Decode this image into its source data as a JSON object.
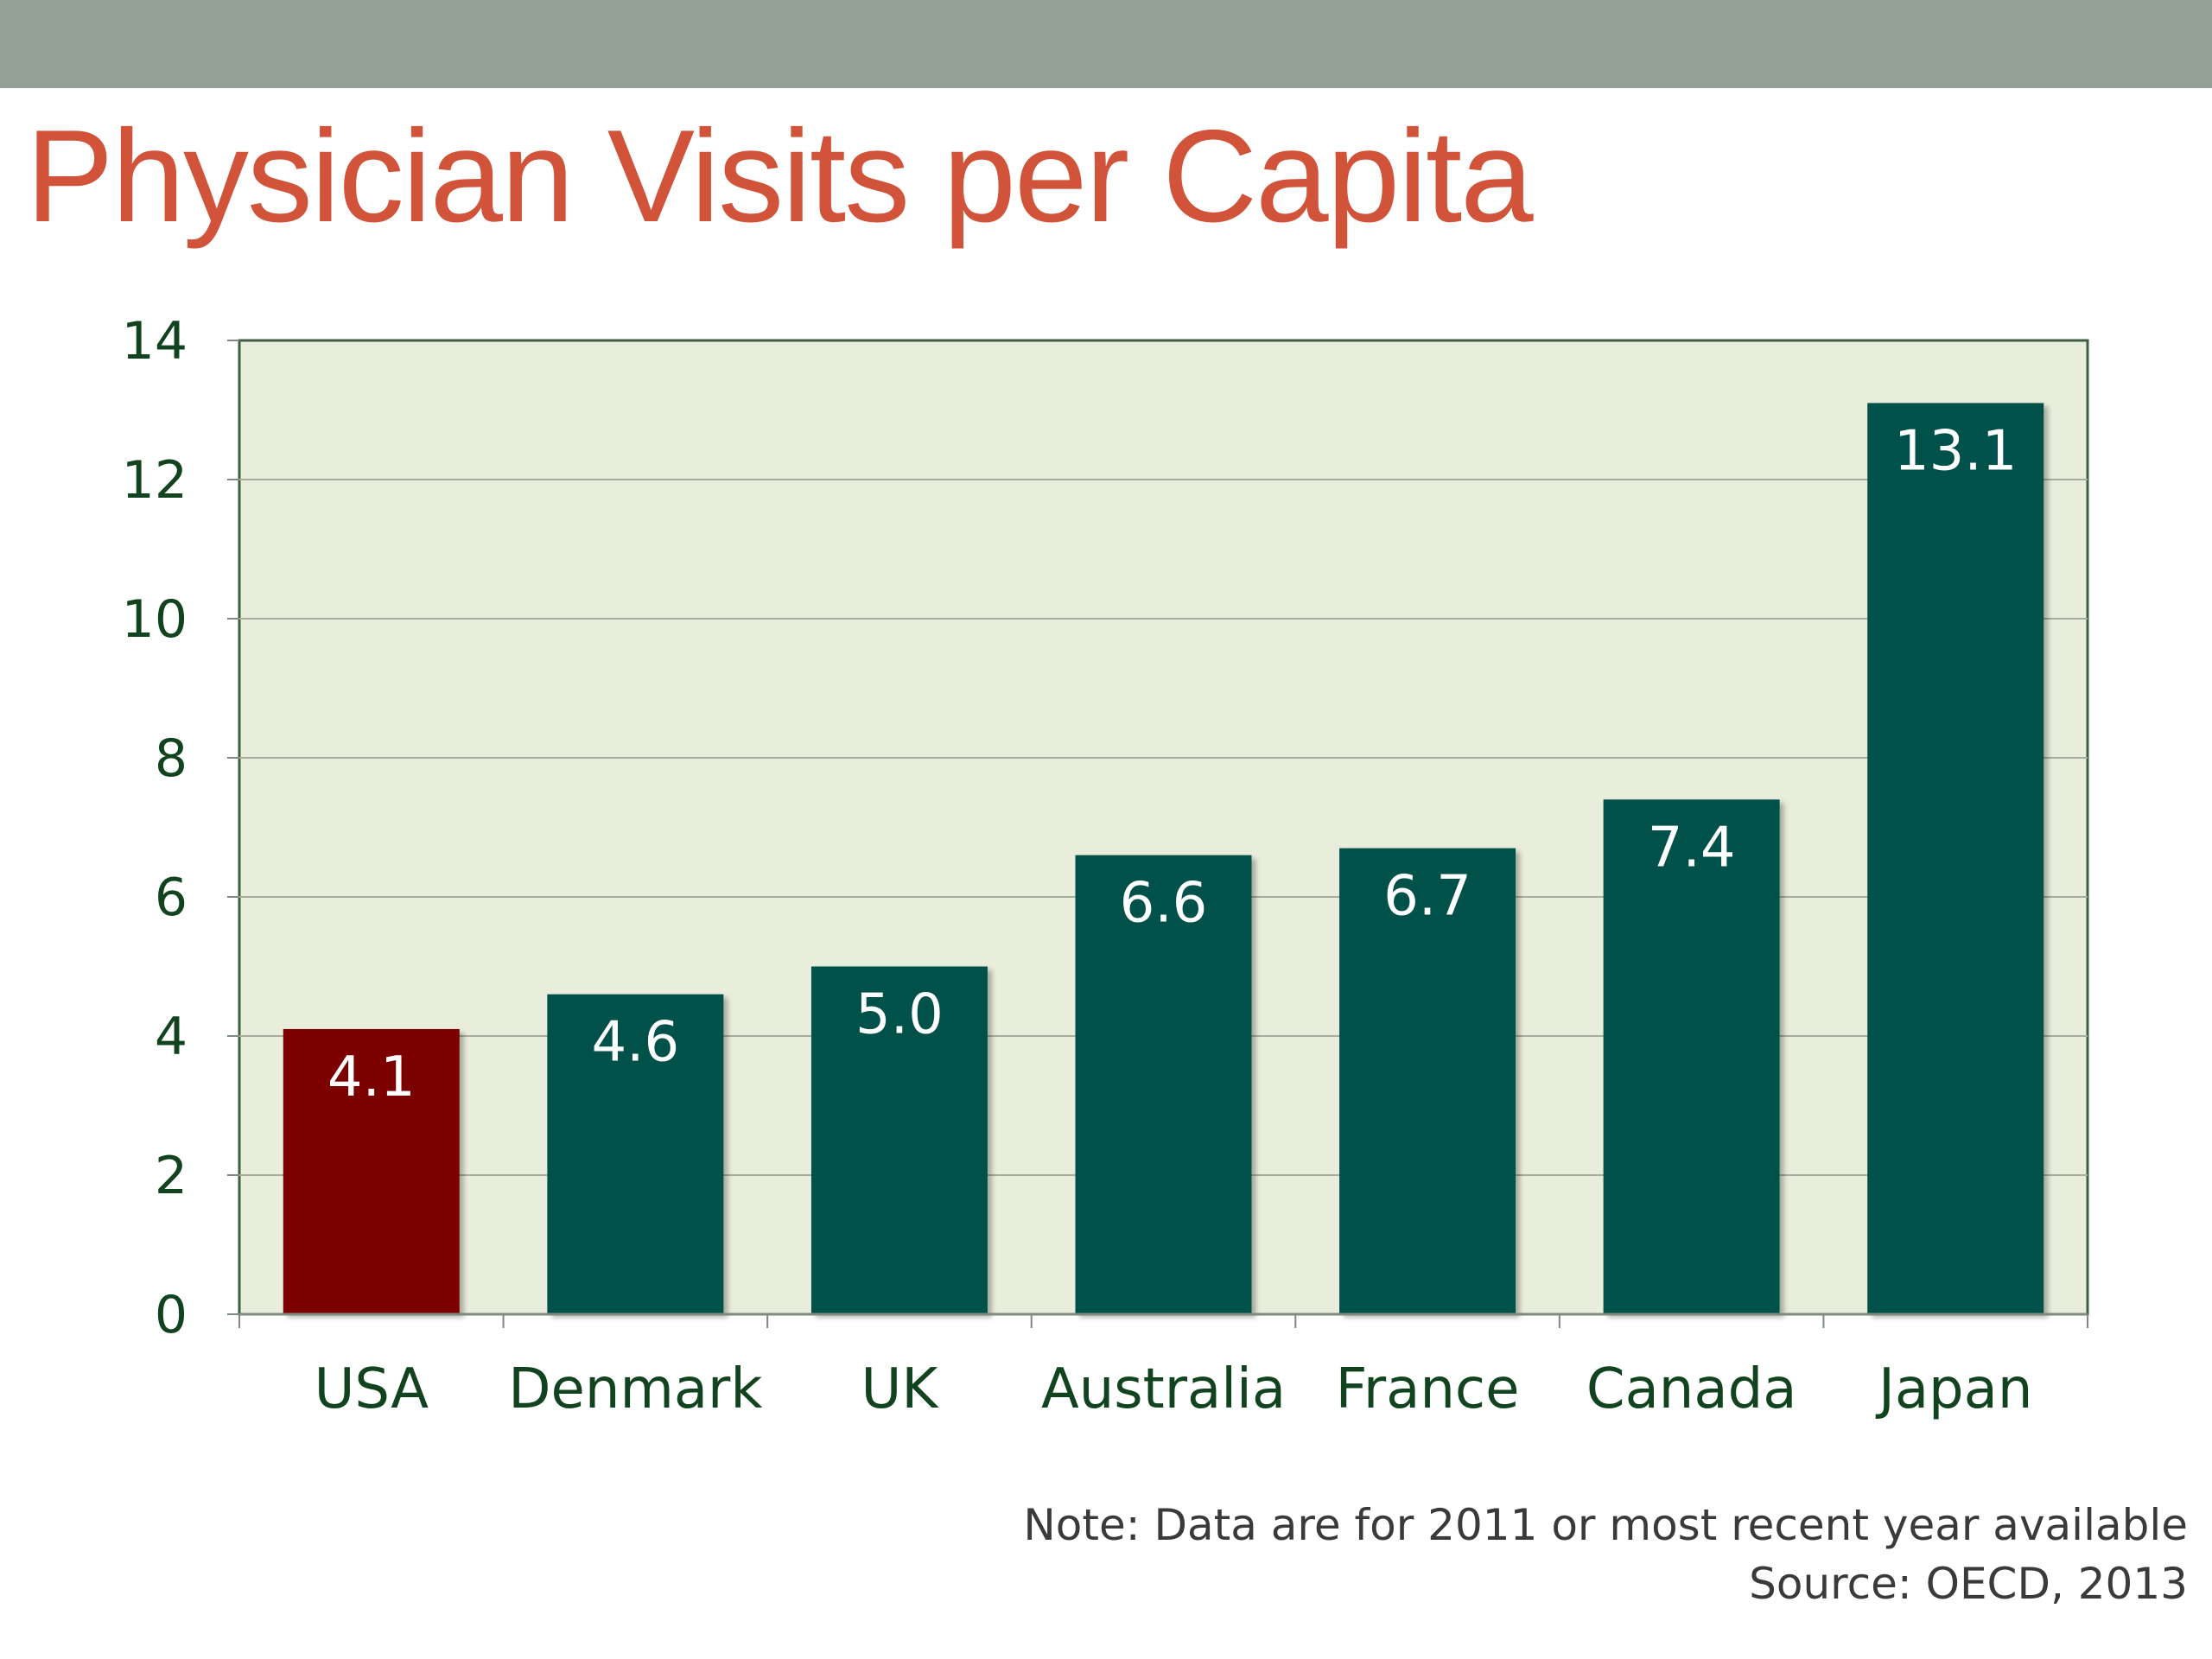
{
  "slide": {
    "title": "Physician Visits per Capita",
    "note": "Note: Data are for 2011 or most recent year available",
    "source": "Source: OECD, 2013"
  },
  "colors": {
    "title": "#d0533a",
    "band": "#93a096",
    "plot_background": "#e9eddb",
    "bar_default": "#00514a",
    "bar_highlight": "#7c0000",
    "axis_text": "#12431f"
  },
  "chart_data": {
    "type": "bar",
    "title": "Physician Visits per Capita",
    "xlabel": "",
    "ylabel": "",
    "categories": [
      "USA",
      "Denmark",
      "UK",
      "Australia",
      "France",
      "Canada",
      "Japan"
    ],
    "values": [
      4.1,
      4.6,
      5.0,
      6.6,
      6.7,
      7.4,
      13.1
    ],
    "value_labels": [
      "4.1",
      "4.6",
      "5.0",
      "6.6",
      "6.7",
      "7.4",
      "13.1"
    ],
    "highlight": [
      "USA"
    ],
    "ylim": [
      0,
      14
    ],
    "yticks": [
      0,
      2,
      4,
      6,
      8,
      10,
      12,
      14
    ],
    "grid": true,
    "legend": "none"
  }
}
